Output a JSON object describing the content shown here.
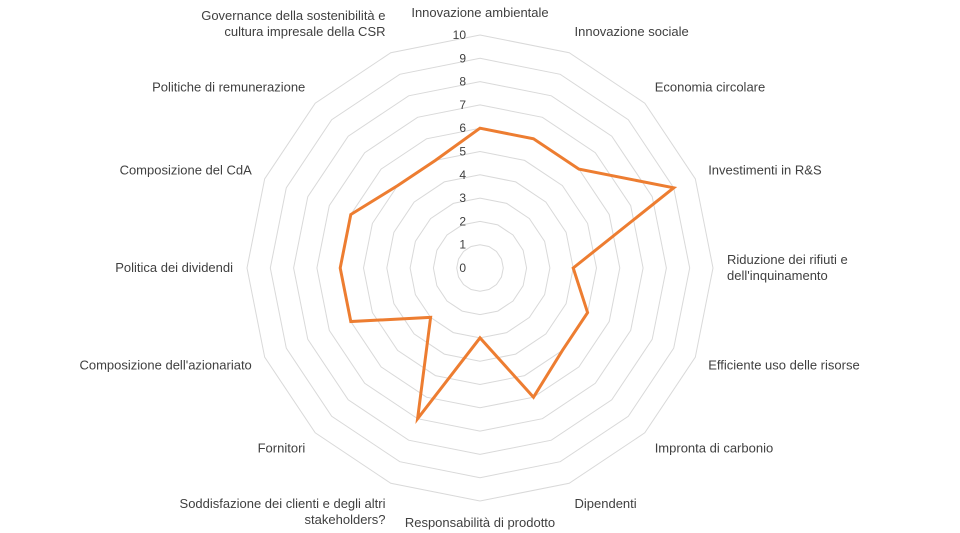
{
  "chart_data": {
    "type": "radar",
    "categories": [
      [
        "Innovazione ambientale"
      ],
      [
        "Innovazione sociale"
      ],
      [
        "Economia circolare"
      ],
      [
        "Investimenti in R&S"
      ],
      [
        "Riduzione dei rifiuti e",
        "dell'inquinamento"
      ],
      [
        "Efficiente uso delle risorse"
      ],
      [
        "Impronta di carbonio"
      ],
      [
        "Dipendenti"
      ],
      [
        "Responsabilità di prodotto"
      ],
      [
        "Soddisfazione dei clienti e degli altri",
        "stakeholders?"
      ],
      [
        "Fornitori"
      ],
      [
        "Composizione dell'azionariato"
      ],
      [
        "Politica dei dividendi"
      ],
      [
        "Composizione del CdA"
      ],
      [
        "Politiche di remunerazione"
      ],
      [
        "Governance della sostenibilità e",
        "cultura impresale della CSR"
      ]
    ],
    "series": [
      {
        "values": [
          6,
          6,
          6,
          9,
          4,
          5,
          5,
          6,
          3,
          7,
          3,
          6,
          6,
          6,
          5,
          5
        ]
      }
    ],
    "rlim": [
      0,
      10
    ],
    "ticks": [
      "0",
      "1",
      "2",
      "3",
      "4",
      "5",
      "6",
      "7",
      "8",
      "9",
      "10"
    ],
    "legend": "none",
    "grid": true,
    "colors": {
      "series": "#ed7d31",
      "grid": "#d9d9d9",
      "text": "#404040"
    }
  }
}
